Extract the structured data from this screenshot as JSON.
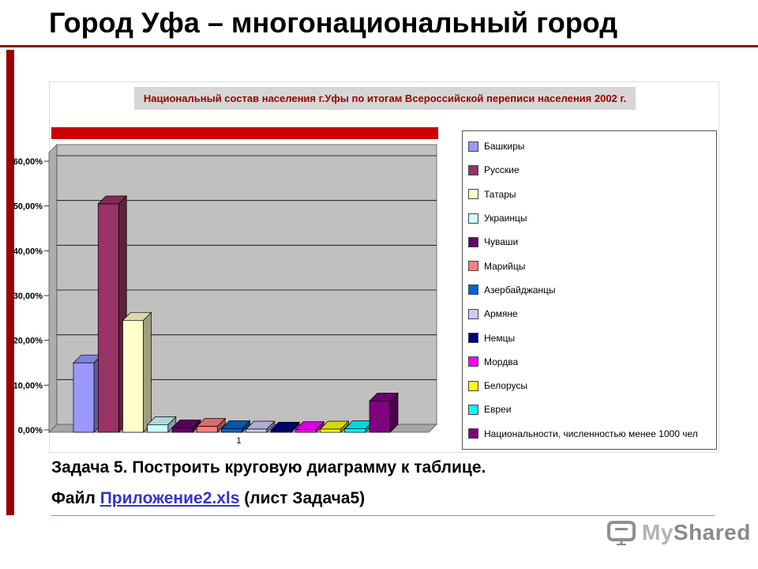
{
  "slide": {
    "title": "Город Уфа – многонациональный город",
    "task_text": "Задача 5. Построить круговую диаграмму к таблице.",
    "file_prefix": "Файл ",
    "file_link": "Приложение2.xls",
    "file_suffix": " (лист Задача5)",
    "logo": {
      "prefix": "My",
      "suffix": "Shared"
    }
  },
  "colors": {
    "accent_dark_red": "#990000",
    "accent_bright_red": "#CC0000",
    "chart_wall_gray": "#C0C0C0",
    "link_blue": "#3333CC"
  },
  "chart_data": {
    "type": "bar",
    "style": "3d-column",
    "title": "Национальный состав населения г.Уфы по итогам Всероссийской переписи населения 2002 г.",
    "category_label": "1",
    "ylim": [
      0,
      60
    ],
    "ytick_step": 10,
    "ytick_labels": [
      "0,00%",
      "10,00%",
      "20,00%",
      "30,00%",
      "40,00%",
      "50,00%",
      "60,00%"
    ],
    "grid": true,
    "legend_position": "right",
    "series": [
      {
        "name": "Башкиры",
        "value": 15.5,
        "color": "#9999FF"
      },
      {
        "name": "Русские",
        "value": 51.0,
        "color": "#993366"
      },
      {
        "name": "Татары",
        "value": 25.0,
        "color": "#FFFFCC"
      },
      {
        "name": "Украинцы",
        "value": 1.7,
        "color": "#CCFFFF"
      },
      {
        "name": "Чуваши",
        "value": 1.0,
        "color": "#660066"
      },
      {
        "name": "Марийцы",
        "value": 1.3,
        "color": "#FF8080"
      },
      {
        "name": "Азербайджанцы",
        "value": 0.8,
        "color": "#0066CC"
      },
      {
        "name": "Армяне",
        "value": 0.7,
        "color": "#CCCCFF"
      },
      {
        "name": "Немцы",
        "value": 0.5,
        "color": "#000080"
      },
      {
        "name": "Мордва",
        "value": 0.6,
        "color": "#FF00FF"
      },
      {
        "name": "Белорусы",
        "value": 0.7,
        "color": "#FFFF00"
      },
      {
        "name": "Евреи",
        "value": 0.8,
        "color": "#00FFFF"
      },
      {
        "name": "Национальности, численностью менее 1000 чел",
        "value": 7.0,
        "color": "#800080"
      }
    ]
  }
}
